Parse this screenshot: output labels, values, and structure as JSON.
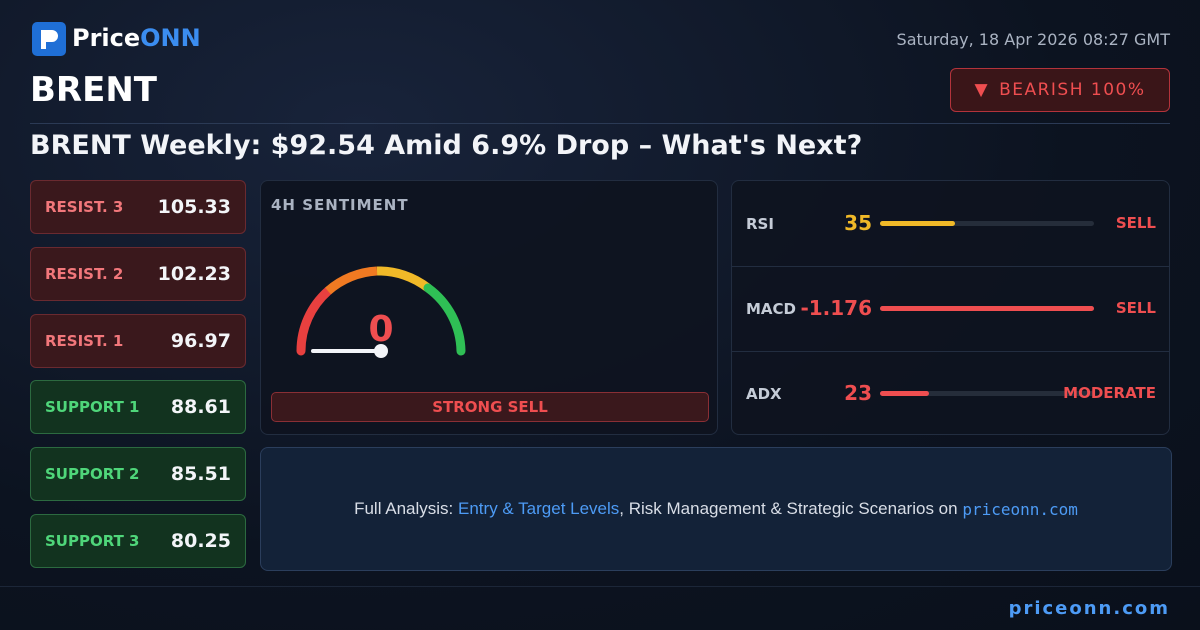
{
  "header": {
    "brand": [
      "Price",
      "ONN"
    ],
    "date": "Saturday, 18 Apr 2026 08:27 GMT",
    "symbol": "BRENT",
    "badge": "BEARISH 100%"
  },
  "headline": "BRENT Weekly: $92.54 Amid 6.9% Drop – What's Next?",
  "resistance": [
    {
      "label": "RESIST. 3",
      "value": "105.33"
    },
    {
      "label": "RESIST. 2",
      "value": "102.23"
    },
    {
      "label": "RESIST. 1",
      "value": "96.97"
    }
  ],
  "support": [
    {
      "label": "SUPPORT 1",
      "value": "88.61"
    },
    {
      "label": "SUPPORT 2",
      "value": "85.51"
    },
    {
      "label": "SUPPORT 3",
      "value": "80.25"
    }
  ],
  "sentiment": {
    "title": "4H SENTIMENT",
    "value": 0,
    "label": "STRONG SELL"
  },
  "indicators": [
    {
      "name": "RSI",
      "value": 35,
      "signal": "SELL",
      "color": "#f0b928"
    },
    {
      "name": "MACD",
      "value": -1.176,
      "signal": "SELL",
      "color": "#ef4e50"
    },
    {
      "name": "ADX",
      "value": 23,
      "signal": "MODERATE",
      "color": "#ef4e50"
    }
  ],
  "cta": {
    "prefix": "Full Analysis:",
    "link": "Entry & Target Levels",
    "rest": ", Risk Management & Strategic Scenarios on",
    "site": "priceonn.com"
  },
  "footer": "priceonn.com"
}
